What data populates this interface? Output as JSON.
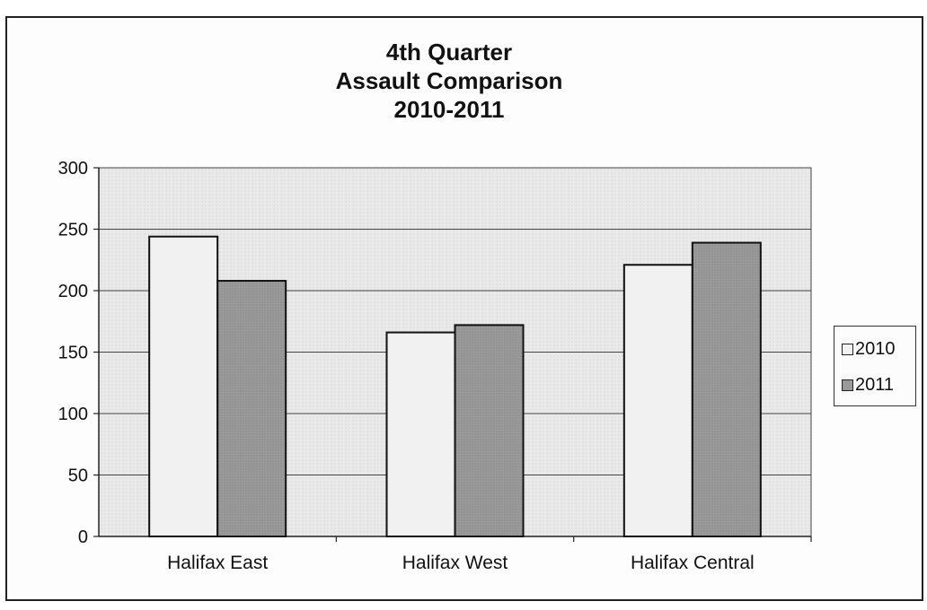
{
  "chart_data": {
    "type": "bar",
    "title_lines": [
      "4th Quarter",
      "Assault Comparison",
      "2010-2011"
    ],
    "categories": [
      "Halifax East",
      "Halifax West",
      "Halifax Central"
    ],
    "series": [
      {
        "name": "2010",
        "values": [
          244,
          166,
          221
        ],
        "color": "#f1f1f1"
      },
      {
        "name": "2011",
        "values": [
          208,
          172,
          239
        ],
        "color": "#9a9a9a"
      }
    ],
    "ylim": [
      0,
      300
    ],
    "yticks": [
      "300",
      "250",
      "200",
      "150",
      "100",
      "50",
      "0"
    ],
    "xlabel": "",
    "ylabel": "",
    "grid": true,
    "legend_position": "right",
    "plot_background": "#e9e9e9"
  }
}
